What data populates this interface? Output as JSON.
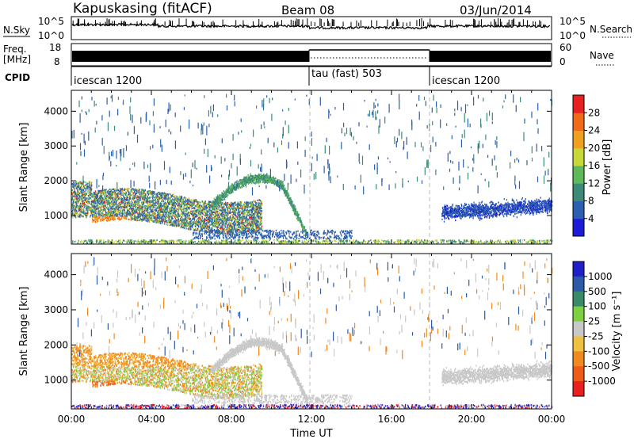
{
  "header": {
    "station": "Kapuskasing (fitACF)",
    "beam": "Beam 08",
    "date": "03/Jun/2014"
  },
  "chart_data": [
    {
      "type": "line",
      "panel": "noise",
      "left_label": "N.Sky",
      "right_label": "N.Search",
      "left_ticks": [
        "10^5",
        "10^0"
      ],
      "right_ticks": [
        "10^5",
        "10^0"
      ]
    },
    {
      "type": "line",
      "panel": "frequency",
      "left_label_top": "Freq.",
      "left_label_unit": "[MHz]",
      "right_label": "Nave",
      "left_ticks": [
        "18",
        "8"
      ],
      "right_ticks": [
        "60",
        "0"
      ]
    },
    {
      "type": "table",
      "panel": "cpid",
      "label": "CPID",
      "segments": [
        {
          "name": "icescan 1200",
          "start_hour": 0
        },
        {
          "name": "tau (fast) 503",
          "start_hour": 12
        },
        {
          "name": "icescan 1200",
          "start_hour": 18
        }
      ]
    },
    {
      "type": "heatmap",
      "panel": "power",
      "ylabel": "Slant Range [km]",
      "yticks": [
        1000,
        2000,
        3000,
        4000
      ],
      "ylim": [
        180,
        4600
      ],
      "xlim": [
        0,
        24
      ],
      "colorbar_label": "Power [dB]",
      "colorbar_ticks": [
        "4",
        "8",
        "12",
        "16",
        "20",
        "24",
        "28"
      ],
      "colors": [
        "#1c1cd8",
        "#2c5fb0",
        "#3d8a78",
        "#5fb85a",
        "#c8d838",
        "#f0a020",
        "#f06a18",
        "#e82020"
      ]
    },
    {
      "type": "heatmap",
      "panel": "velocity",
      "ylabel": "Slant Range [km]",
      "yticks": [
        1000,
        2000,
        3000,
        4000
      ],
      "ylim": [
        180,
        4600
      ],
      "xlim": [
        0,
        24
      ],
      "xlabel": "Time UT",
      "xticks": [
        "00:00",
        "04:00",
        "08:00",
        "12:00",
        "16:00",
        "20:00",
        "00:00"
      ],
      "colorbar_label": "Velocity [m s⁻¹]",
      "colorbar_ticks": [
        "1000",
        "500",
        "100",
        "25",
        "-25",
        "-100",
        "-500",
        "-1000"
      ],
      "colors": [
        "#2020c8",
        "#2c5aa8",
        "#3a8a6a",
        "#7ed040",
        "#c8c8c8",
        "#f0c040",
        "#f08a20",
        "#f05a18",
        "#e82020"
      ]
    }
  ]
}
